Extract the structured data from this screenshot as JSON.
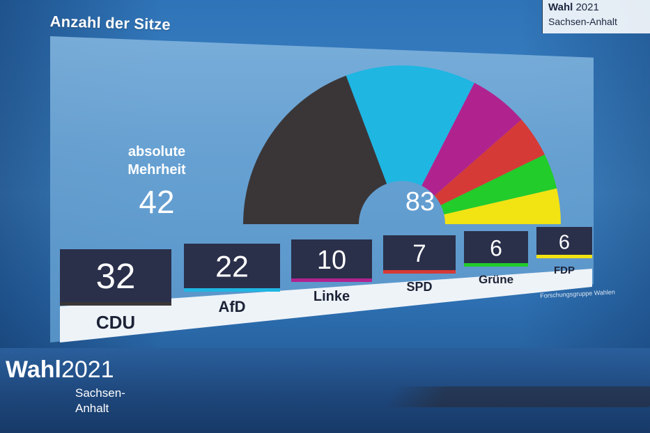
{
  "chart_data": {
    "type": "pie",
    "title": "Anzahl der Sitze",
    "total_seats": 83,
    "total_label": "83",
    "majority": {
      "label_line1": "absolute",
      "label_line2": "Mehrheit",
      "value": "42"
    },
    "categories": [
      "CDU",
      "AfD",
      "Linke",
      "SPD",
      "Grüne",
      "FDP"
    ],
    "values": [
      32,
      22,
      10,
      7,
      6,
      6
    ],
    "colors": [
      "#3a3638",
      "#1fb6e2",
      "#b0238f",
      "#d63a36",
      "#22cc2a",
      "#f2e313"
    ],
    "legend": "bottom"
  },
  "source": "Forschungsgruppe Wahlen",
  "branding": {
    "corner_bold": "Wahl",
    "corner_year": "2021",
    "corner_region": "Sachsen-Anhalt",
    "bottom_bold": "Wahl",
    "bottom_year": "2021",
    "bottom_region_line1": "Sachsen-",
    "bottom_region_line2": "Anhalt"
  }
}
